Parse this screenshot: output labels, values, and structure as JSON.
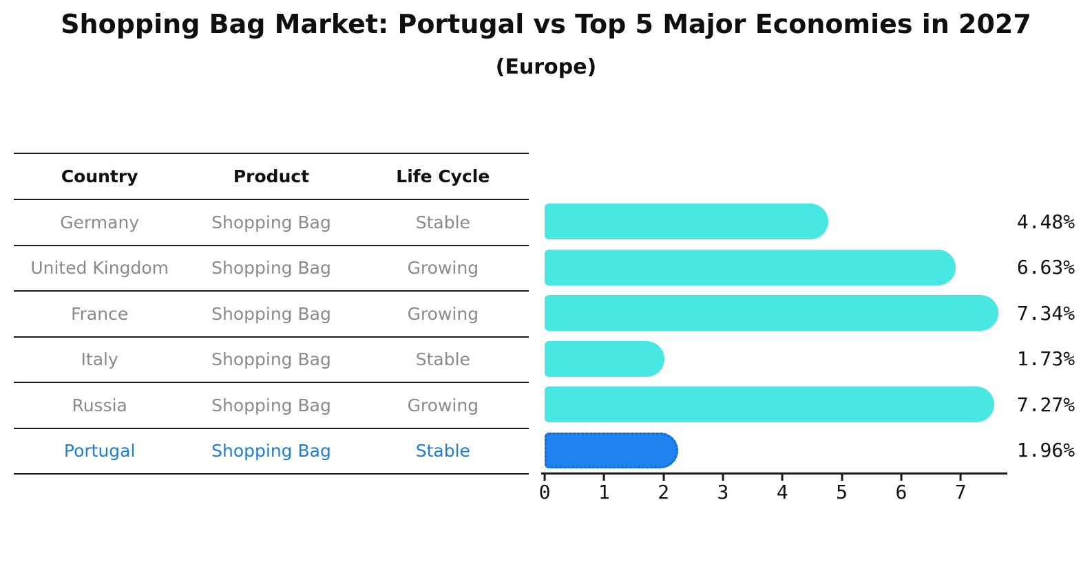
{
  "chart_data": {
    "type": "bar",
    "title": "Shopping Bag Market: Portugal vs Top 5 Major Economies in 2027",
    "subtitle": "(Europe)",
    "categories": [
      "Germany",
      "United Kingdom",
      "France",
      "Italy",
      "Russia",
      "Portugal"
    ],
    "values": [
      4.48,
      6.63,
      7.34,
      1.73,
      7.27,
      1.96
    ],
    "value_labels": [
      "4.48%",
      "6.63%",
      "7.34%",
      "1.73%",
      "7.27%",
      "1.96%"
    ],
    "x_ticks": [
      0,
      1,
      2,
      3,
      4,
      5,
      6,
      7
    ],
    "xlim": [
      0,
      7.75
    ],
    "orientation": "horizontal",
    "grid": false,
    "legend": "none",
    "bar_color": "#48e7e2",
    "highlight_color": "#1e83f0",
    "highlight_border_color": "#1b63ce",
    "highlight_index": 5
  },
  "table": {
    "headers": [
      "Country",
      "Product",
      "Life Cycle"
    ],
    "rows": [
      {
        "country": "Germany",
        "product": "Shopping Bag",
        "life_cycle": "Stable",
        "highlight": false
      },
      {
        "country": "United Kingdom",
        "product": "Shopping Bag",
        "life_cycle": "Growing",
        "highlight": false
      },
      {
        "country": "France",
        "product": "Shopping Bag",
        "life_cycle": "Growing",
        "highlight": false
      },
      {
        "country": "Italy",
        "product": "Shopping Bag",
        "life_cycle": "Stable",
        "highlight": false
      },
      {
        "country": "Russia",
        "product": "Shopping Bag",
        "life_cycle": "Growing",
        "highlight": false
      },
      {
        "country": "Portugal",
        "product": "Shopping Bag",
        "life_cycle": "Stable",
        "highlight": true
      }
    ],
    "text_color": "#8a8a8a",
    "highlight_text_color": "#1e7cd9"
  }
}
